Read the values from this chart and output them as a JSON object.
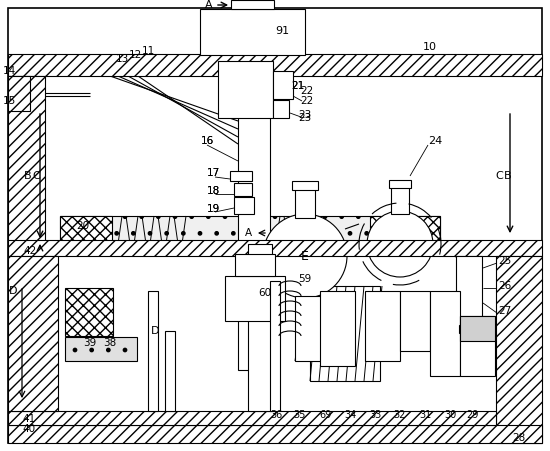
{
  "bg_color": "#ffffff",
  "figsize": [
    5.5,
    4.51
  ],
  "dpi": 100,
  "lw": 0.8,
  "labels": {
    "A_top": "A",
    "91": "91",
    "10": "10",
    "14": "14",
    "13": "13",
    "12": "12",
    "11": "11",
    "15": "15",
    "21": "21",
    "22": "22",
    "23": "23",
    "16": "16",
    "17": "17",
    "18": "18",
    "19": "19",
    "20": "20",
    "24": "24",
    "B_left": "B",
    "C_left": "C",
    "B_right": "B",
    "C_right": "C",
    "A_mid": "A",
    "E": "E",
    "42": "42",
    "25": "25",
    "26": "26",
    "27": "27",
    "28": "28",
    "29": "29",
    "30": "30",
    "31": "31",
    "32": "32",
    "33": "33",
    "34": "34",
    "69": "69",
    "35": "35",
    "36": "36",
    "38": "38",
    "39": "39",
    "40": "40",
    "41": "41",
    "D_left": "D",
    "D_mid": "D",
    "60": "60",
    "59": "59"
  }
}
